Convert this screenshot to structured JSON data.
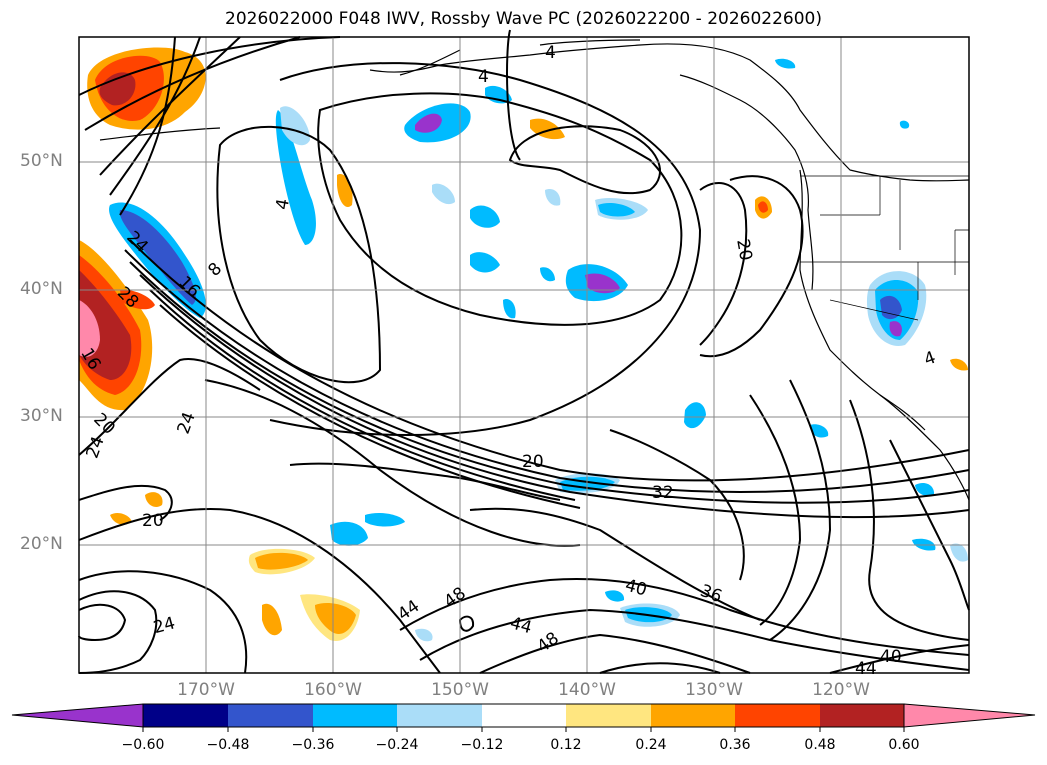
{
  "title": "2026022000 F048 IWV, Rossby Wave PC (2026022200 - 2026022600)",
  "map": {
    "lat_labels": [
      "50°N",
      "40°N",
      "30°N",
      "20°N"
    ],
    "lon_labels": [
      "170°W",
      "160°W",
      "150°W",
      "140°W",
      "130°W",
      "120°W"
    ],
    "contour_labels": [
      "4",
      "4",
      "4",
      "4",
      "8",
      "16",
      "16",
      "20",
      "20",
      "20",
      "20",
      "24",
      "24",
      "24",
      "24",
      "28",
      "32",
      "36",
      "40",
      "40",
      "44",
      "44",
      "44",
      "48",
      "48"
    ]
  },
  "colorbar": {
    "tick_labels": [
      "−0.60",
      "−0.48",
      "−0.36",
      "−0.24",
      "−0.12",
      "0.12",
      "0.24",
      "0.36",
      "0.48",
      "0.60"
    ],
    "colors": [
      "#9933cc",
      "#000088",
      "#3355cc",
      "#00bbff",
      "#aaddf8",
      "#ffffff",
      "#ffe680",
      "#ffa500",
      "#ff4400",
      "#b22222",
      "#ff88aa"
    ]
  }
}
